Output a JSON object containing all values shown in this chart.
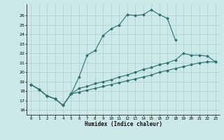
{
  "xlabel": "Humidex (Indice chaleur)",
  "bg_color": "#cce9e9",
  "grid_color": "#b0cccc",
  "line_color": "#2e7070",
  "xlim": [
    -0.5,
    23.5
  ],
  "ylim": [
    15.5,
    27.2
  ],
  "yticks": [
    16,
    17,
    18,
    19,
    20,
    21,
    22,
    23,
    24,
    25,
    26
  ],
  "xticks": [
    0,
    1,
    2,
    3,
    4,
    5,
    6,
    7,
    8,
    9,
    10,
    11,
    12,
    13,
    14,
    15,
    16,
    17,
    18,
    19,
    20,
    21,
    22,
    23
  ],
  "line1_x": [
    0,
    1,
    2,
    3,
    4,
    5,
    6,
    7,
    8,
    9,
    10,
    11,
    12,
    13,
    14,
    15,
    16,
    17,
    18
  ],
  "line1_y": [
    18.7,
    18.2,
    17.5,
    17.2,
    16.5,
    17.7,
    19.5,
    21.8,
    22.3,
    23.9,
    24.6,
    25.0,
    26.1,
    26.0,
    26.1,
    26.6,
    26.1,
    25.7,
    23.4
  ],
  "line2_x": [
    0,
    1,
    2,
    3,
    4,
    5,
    6,
    7,
    8,
    9,
    10,
    11,
    12,
    13,
    14,
    15,
    16,
    17,
    18,
    19,
    20,
    21,
    22,
    23
  ],
  "line2_y": [
    18.7,
    18.2,
    17.5,
    17.2,
    16.5,
    17.7,
    18.3,
    18.5,
    18.8,
    19.0,
    19.2,
    19.5,
    19.7,
    20.0,
    20.3,
    20.5,
    20.8,
    21.0,
    21.3,
    22.0,
    21.8,
    21.8,
    21.7,
    21.1
  ],
  "line3_x": [
    0,
    1,
    2,
    3,
    4,
    5,
    6,
    7,
    8,
    9,
    10,
    11,
    12,
    13,
    14,
    15,
    16,
    17,
    18,
    19,
    20,
    21,
    22,
    23
  ],
  "line3_y": [
    18.7,
    18.2,
    17.5,
    17.2,
    16.5,
    17.7,
    17.9,
    18.1,
    18.3,
    18.5,
    18.7,
    18.9,
    19.1,
    19.3,
    19.5,
    19.7,
    20.0,
    20.2,
    20.4,
    20.6,
    20.8,
    21.0,
    21.1,
    21.1
  ]
}
